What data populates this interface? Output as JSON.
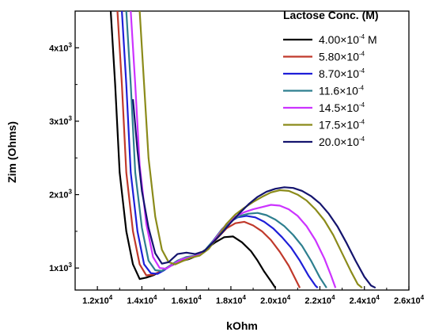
{
  "chart_data": {
    "type": "line",
    "xlabel": "kOhm",
    "ylabel": "Zim (Ohms)",
    "xlim": [
      11000,
      26000
    ],
    "ylim": [
      700,
      4500
    ],
    "x_ticks": [
      {
        "value": 12000,
        "mantissa": "1.2x10",
        "exp": "4"
      },
      {
        "value": 14000,
        "mantissa": "1.4x10",
        "exp": "4"
      },
      {
        "value": 16000,
        "mantissa": "1.6x10",
        "exp": "4"
      },
      {
        "value": 18000,
        "mantissa": "1.8x10",
        "exp": "4"
      },
      {
        "value": 20000,
        "mantissa": "2.0x10",
        "exp": "4"
      },
      {
        "value": 22000,
        "mantissa": "2.2x10",
        "exp": "4"
      },
      {
        "value": 24000,
        "mantissa": "2.4x10",
        "exp": "4"
      },
      {
        "value": 26000,
        "mantissa": "2.6x10",
        "exp": "4"
      }
    ],
    "y_ticks": [
      {
        "value": 1000,
        "mantissa": "1x10",
        "exp": "3"
      },
      {
        "value": 2000,
        "mantissa": "2x10",
        "exp": "3"
      },
      {
        "value": 3000,
        "mantissa": "3x10",
        "exp": "3"
      },
      {
        "value": 4000,
        "mantissa": "4x10",
        "exp": "3"
      }
    ],
    "legend": {
      "title": "Lactose Conc. (M)",
      "placement": "top-right"
    },
    "series": [
      {
        "name": "4.00x10-4 M",
        "mantissa": "4.00×10",
        "exp": "-4",
        "suffix": " M",
        "color": "#000000",
        "points": [
          [
            12600,
            4500
          ],
          [
            12800,
            3500
          ],
          [
            13000,
            2300
          ],
          [
            13300,
            1500
          ],
          [
            13600,
            1050
          ],
          [
            13900,
            850
          ],
          [
            14200,
            870
          ],
          [
            14500,
            900
          ],
          [
            14900,
            960
          ],
          [
            15300,
            1030
          ],
          [
            15700,
            1090
          ],
          [
            16100,
            1120
          ],
          [
            16500,
            1170
          ],
          [
            16900,
            1260
          ],
          [
            17300,
            1350
          ],
          [
            17700,
            1420
          ],
          [
            18100,
            1430
          ],
          [
            18500,
            1350
          ],
          [
            18900,
            1230
          ],
          [
            19200,
            1100
          ],
          [
            19500,
            950
          ],
          [
            19800,
            820
          ],
          [
            20000,
            730
          ]
        ]
      },
      {
        "name": "5.80x10-4",
        "mantissa": "5.80×10",
        "exp": "-4",
        "suffix": "",
        "color": "#c0392b",
        "points": [
          [
            12900,
            4500
          ],
          [
            13100,
            3500
          ],
          [
            13300,
            2300
          ],
          [
            13600,
            1500
          ],
          [
            13900,
            1050
          ],
          [
            14200,
            900
          ],
          [
            14500,
            910
          ],
          [
            14900,
            960
          ],
          [
            15300,
            1040
          ],
          [
            15700,
            1100
          ],
          [
            16100,
            1130
          ],
          [
            16600,
            1180
          ],
          [
            17000,
            1280
          ],
          [
            17400,
            1410
          ],
          [
            17800,
            1540
          ],
          [
            18200,
            1610
          ],
          [
            18600,
            1630
          ],
          [
            19000,
            1580
          ],
          [
            19400,
            1500
          ],
          [
            19800,
            1380
          ],
          [
            20200,
            1220
          ],
          [
            20600,
            1030
          ],
          [
            20900,
            850
          ],
          [
            21100,
            730
          ]
        ]
      },
      {
        "name": "8.70x10-4",
        "mantissa": "8.70×10",
        "exp": "-4",
        "suffix": "",
        "color": "#1f1fd8",
        "points": [
          [
            13100,
            4500
          ],
          [
            13300,
            3500
          ],
          [
            13500,
            2300
          ],
          [
            13800,
            1500
          ],
          [
            14100,
            1050
          ],
          [
            14400,
            930
          ],
          [
            14700,
            920
          ],
          [
            15000,
            970
          ],
          [
            15400,
            1060
          ],
          [
            15800,
            1120
          ],
          [
            16200,
            1140
          ],
          [
            16700,
            1200
          ],
          [
            17100,
            1320
          ],
          [
            17500,
            1480
          ],
          [
            17900,
            1620
          ],
          [
            18300,
            1690
          ],
          [
            18700,
            1710
          ],
          [
            19100,
            1690
          ],
          [
            19500,
            1630
          ],
          [
            19900,
            1540
          ],
          [
            20300,
            1420
          ],
          [
            20700,
            1280
          ],
          [
            21100,
            1100
          ],
          [
            21500,
            890
          ],
          [
            21800,
            760
          ],
          [
            21900,
            730
          ]
        ]
      },
      {
        "name": "11.6x10-4",
        "mantissa": "11.6×10",
        "exp": "-4",
        "suffix": "",
        "color": "#2e7f8f",
        "points": [
          [
            13300,
            4500
          ],
          [
            13500,
            3500
          ],
          [
            13700,
            2300
          ],
          [
            14000,
            1550
          ],
          [
            14300,
            1100
          ],
          [
            14600,
            970
          ],
          [
            14900,
            960
          ],
          [
            15200,
            1020
          ],
          [
            15600,
            1100
          ],
          [
            16000,
            1150
          ],
          [
            16400,
            1170
          ],
          [
            16800,
            1230
          ],
          [
            17200,
            1370
          ],
          [
            17600,
            1530
          ],
          [
            18000,
            1650
          ],
          [
            18400,
            1710
          ],
          [
            18800,
            1740
          ],
          [
            19200,
            1750
          ],
          [
            19600,
            1720
          ],
          [
            20000,
            1660
          ],
          [
            20400,
            1570
          ],
          [
            20800,
            1450
          ],
          [
            21200,
            1300
          ],
          [
            21600,
            1100
          ],
          [
            22000,
            870
          ],
          [
            22300,
            730
          ]
        ]
      },
      {
        "name": "14.5x10-4",
        "mantissa": "14.5×10",
        "exp": "-4",
        "suffix": "",
        "color": "#cc33ff",
        "points": [
          [
            13500,
            4500
          ],
          [
            13700,
            3500
          ],
          [
            13900,
            2400
          ],
          [
            14200,
            1600
          ],
          [
            14500,
            1150
          ],
          [
            14800,
            1000
          ],
          [
            15100,
            990
          ],
          [
            15400,
            1050
          ],
          [
            15800,
            1120
          ],
          [
            16200,
            1150
          ],
          [
            16600,
            1180
          ],
          [
            17000,
            1280
          ],
          [
            17400,
            1440
          ],
          [
            17800,
            1600
          ],
          [
            18200,
            1700
          ],
          [
            18600,
            1760
          ],
          [
            19000,
            1800
          ],
          [
            19400,
            1830
          ],
          [
            19800,
            1860
          ],
          [
            20200,
            1850
          ],
          [
            20600,
            1800
          ],
          [
            21000,
            1710
          ],
          [
            21400,
            1570
          ],
          [
            21800,
            1380
          ],
          [
            22200,
            1130
          ],
          [
            22500,
            900
          ],
          [
            22700,
            730
          ]
        ]
      },
      {
        "name": "17.5x10-4",
        "mantissa": "17.5×10",
        "exp": "-4",
        "suffix": "",
        "color": "#8b8b1a",
        "points": [
          [
            13900,
            4500
          ],
          [
            14100,
            3500
          ],
          [
            14300,
            2500
          ],
          [
            14600,
            1700
          ],
          [
            14900,
            1250
          ],
          [
            15200,
            1080
          ],
          [
            15500,
            1050
          ],
          [
            15800,
            1090
          ],
          [
            16200,
            1140
          ],
          [
            16600,
            1170
          ],
          [
            17000,
            1260
          ],
          [
            17400,
            1420
          ],
          [
            17800,
            1600
          ],
          [
            18200,
            1730
          ],
          [
            18600,
            1820
          ],
          [
            19000,
            1900
          ],
          [
            19400,
            1970
          ],
          [
            19800,
            2030
          ],
          [
            20200,
            2060
          ],
          [
            20600,
            2050
          ],
          [
            21000,
            2000
          ],
          [
            21400,
            1920
          ],
          [
            21800,
            1800
          ],
          [
            22200,
            1650
          ],
          [
            22600,
            1450
          ],
          [
            23000,
            1200
          ],
          [
            23400,
            950
          ],
          [
            23700,
            780
          ],
          [
            23900,
            730
          ]
        ]
      },
      {
        "name": "20.0x10-4",
        "mantissa": "20.0×10",
        "exp": "-4",
        "suffix": "",
        "color": "#14146e",
        "points": [
          [
            13600,
            3300
          ],
          [
            13800,
            2600
          ],
          [
            14000,
            2050
          ],
          [
            14300,
            1550
          ],
          [
            14600,
            1200
          ],
          [
            14900,
            1060
          ],
          [
            15200,
            1080
          ],
          [
            15600,
            1190
          ],
          [
            16000,
            1210
          ],
          [
            16400,
            1190
          ],
          [
            16800,
            1230
          ],
          [
            17200,
            1350
          ],
          [
            17600,
            1480
          ],
          [
            18000,
            1620
          ],
          [
            18400,
            1750
          ],
          [
            18800,
            1870
          ],
          [
            19200,
            1970
          ],
          [
            19600,
            2040
          ],
          [
            20000,
            2080
          ],
          [
            20400,
            2100
          ],
          [
            20800,
            2090
          ],
          [
            21200,
            2050
          ],
          [
            21600,
            1980
          ],
          [
            22000,
            1880
          ],
          [
            22400,
            1740
          ],
          [
            22800,
            1560
          ],
          [
            23200,
            1340
          ],
          [
            23600,
            1100
          ],
          [
            24000,
            880
          ],
          [
            24300,
            760
          ],
          [
            24500,
            730
          ]
        ]
      }
    ]
  }
}
